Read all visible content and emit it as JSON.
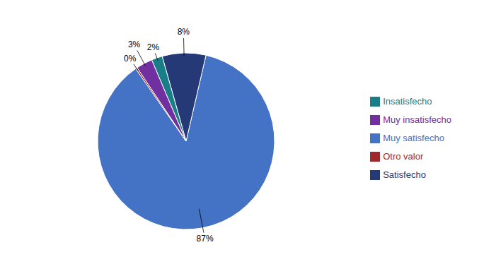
{
  "chart_data": {
    "type": "pie",
    "categories": [
      "Muy satisfecho",
      "Satisfecho",
      "Insatisfecho",
      "Muy insatisfecho",
      "Otro valor"
    ],
    "values": [
      87,
      8,
      2,
      3,
      0.3
    ],
    "value_labels": [
      "87%",
      "8%",
      "2%",
      "3%",
      "0%"
    ],
    "colors": [
      "#4472C4",
      "#243975",
      "#1A7E88",
      "#7030A0",
      "#A0282A"
    ],
    "legend": "right",
    "data_labels": true
  }
}
